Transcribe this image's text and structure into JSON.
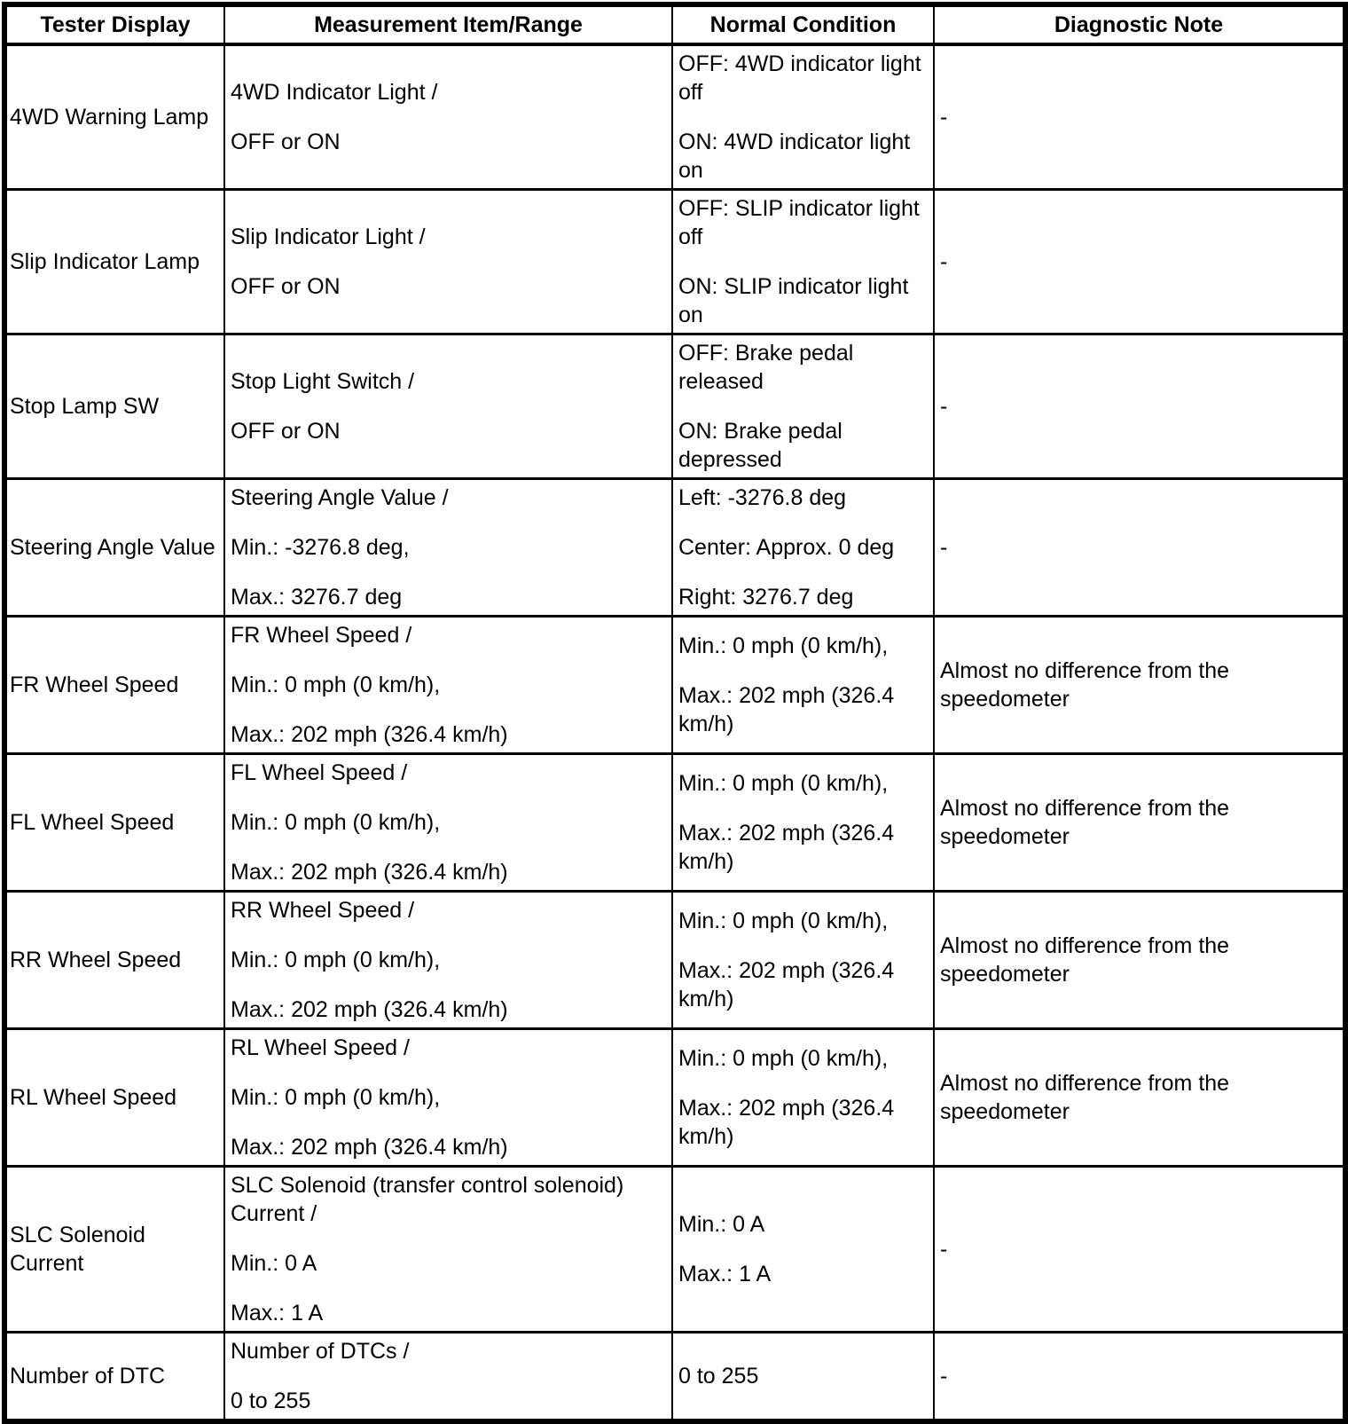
{
  "table": {
    "headers": [
      "Tester Display",
      "Measurement Item/Range",
      "Normal Condition",
      "Diagnostic Note"
    ],
    "rows": [
      {
        "tester_display": "4WD Warning Lamp",
        "measurement_item_range": [
          "4WD Indicator Light /",
          "OFF or ON"
        ],
        "normal_condition": [
          "OFF: 4WD indicator light off",
          "ON: 4WD indicator light on"
        ],
        "diagnostic_note": [
          "-"
        ]
      },
      {
        "tester_display": "Slip Indicator Lamp",
        "measurement_item_range": [
          "Slip Indicator Light /",
          "OFF or ON"
        ],
        "normal_condition": [
          "OFF: SLIP indicator light off",
          "ON: SLIP indicator light on"
        ],
        "diagnostic_note": [
          "-"
        ]
      },
      {
        "tester_display": "Stop Lamp SW",
        "measurement_item_range": [
          "Stop Light Switch /",
          "OFF or ON"
        ],
        "normal_condition": [
          "OFF: Brake pedal released",
          "ON: Brake pedal depressed"
        ],
        "diagnostic_note": [
          "-"
        ]
      },
      {
        "tester_display": "Steering Angle Value",
        "measurement_item_range": [
          "Steering Angle Value /",
          "Min.: -3276.8 deg,",
          "Max.: 3276.7 deg"
        ],
        "normal_condition": [
          "Left: -3276.8 deg",
          "Center: Approx. 0 deg",
          "Right: 3276.7 deg"
        ],
        "diagnostic_note": [
          "-"
        ]
      },
      {
        "tester_display": "FR Wheel Speed",
        "measurement_item_range": [
          "FR Wheel Speed /",
          "Min.: 0 mph (0 km/h),",
          "Max.: 202 mph (326.4 km/h)"
        ],
        "normal_condition": [
          "Min.: 0 mph (0 km/h),",
          "Max.: 202 mph (326.4 km/h)"
        ],
        "diagnostic_note": [
          "Almost no difference from the speedometer"
        ]
      },
      {
        "tester_display": "FL Wheel Speed",
        "measurement_item_range": [
          "FL Wheel Speed /",
          "Min.: 0 mph (0 km/h),",
          "Max.: 202 mph (326.4 km/h)"
        ],
        "normal_condition": [
          "Min.: 0 mph (0 km/h),",
          "Max.: 202 mph (326.4 km/h)"
        ],
        "diagnostic_note": [
          "Almost no difference from the speedometer"
        ]
      },
      {
        "tester_display": "RR Wheel Speed",
        "measurement_item_range": [
          "RR Wheel Speed /",
          "Min.: 0 mph (0 km/h),",
          "Max.: 202 mph (326.4 km/h)"
        ],
        "normal_condition": [
          "Min.: 0 mph (0 km/h),",
          "Max.: 202 mph (326.4 km/h)"
        ],
        "diagnostic_note": [
          "Almost no difference from the speedometer"
        ]
      },
      {
        "tester_display": "RL Wheel Speed",
        "measurement_item_range": [
          "RL Wheel Speed /",
          "Min.: 0 mph (0 km/h),",
          "Max.: 202 mph (326.4 km/h)"
        ],
        "normal_condition": [
          "Min.: 0 mph (0 km/h),",
          "Max.: 202 mph (326.4 km/h)"
        ],
        "diagnostic_note": [
          "Almost no difference from the speedometer"
        ]
      },
      {
        "tester_display": "SLC Solenoid Current",
        "measurement_item_range": [
          "SLC Solenoid (transfer control solenoid) Current /",
          "Min.: 0 A",
          "Max.: 1 A"
        ],
        "normal_condition": [
          "Min.: 0 A",
          "Max.: 1 A"
        ],
        "diagnostic_note": [
          "-"
        ]
      },
      {
        "tester_display": "Number of DTC",
        "measurement_item_range": [
          "Number of DTCs /",
          "0 to 255"
        ],
        "normal_condition": [
          "0 to 255"
        ],
        "diagnostic_note": [
          "-"
        ]
      }
    ]
  }
}
